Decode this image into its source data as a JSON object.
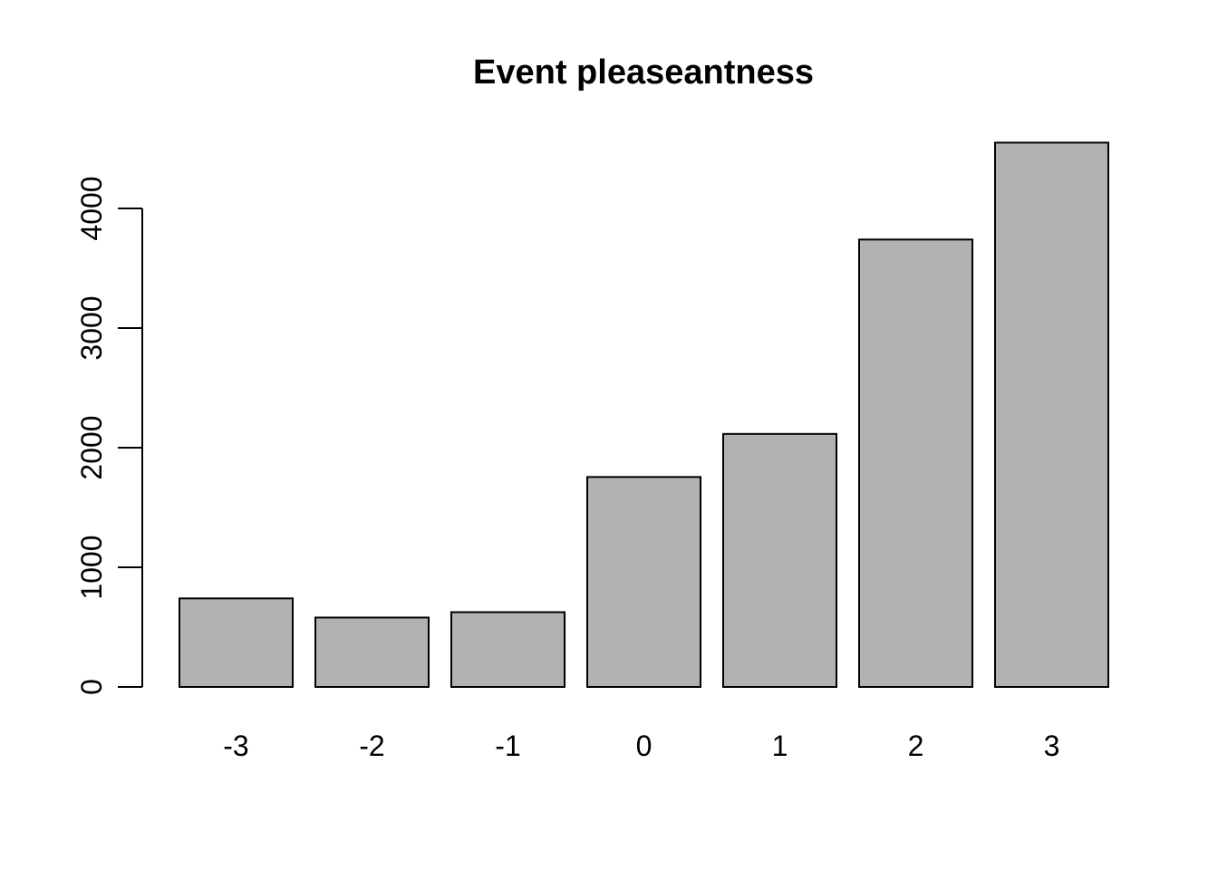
{
  "chart_data": {
    "type": "bar",
    "title": "Event pleaseantness",
    "xlabel": "",
    "ylabel": "",
    "categories": [
      "-3",
      "-2",
      "-1",
      "0",
      "1",
      "2",
      "3"
    ],
    "values": [
      740,
      580,
      625,
      1755,
      2115,
      3740,
      4550
    ],
    "ylim": [
      0,
      4550
    ],
    "yticks": [
      0,
      1000,
      2000,
      3000,
      4000
    ],
    "ytick_labels": [
      "0",
      "1000",
      "2000",
      "3000",
      "4000"
    ],
    "bar_color": "#b2b2b2",
    "bar_border_color": "#000000",
    "grid": false,
    "legend": "none"
  }
}
